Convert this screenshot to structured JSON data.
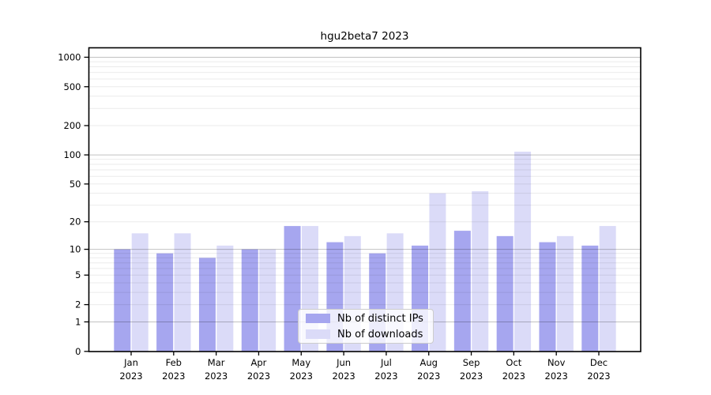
{
  "chart_data": {
    "type": "bar",
    "title": "hgu2beta7 2023",
    "categories": [
      "Jan 2023",
      "Feb 2023",
      "Mar 2023",
      "Apr 2023",
      "May 2023",
      "Jun 2023",
      "Jul 2023",
      "Aug 2023",
      "Sep 2023",
      "Oct 2023",
      "Nov 2023",
      "Dec 2023"
    ],
    "series": [
      {
        "name": "Nb of distinct IPs",
        "color": "#a6a6ef",
        "values": [
          10,
          9,
          8,
          10,
          18,
          12,
          9,
          11,
          16,
          14,
          12,
          11
        ]
      },
      {
        "name": "Nb of downloads",
        "color": "#dbdbf8",
        "values": [
          15,
          15,
          11,
          10,
          18,
          14,
          15,
          40,
          42,
          108,
          14,
          18
        ]
      }
    ],
    "y_axis": {
      "scale": "log10(1+x)",
      "tick_labels": [
        "0",
        "1",
        "2",
        "5",
        "10",
        "20",
        "50",
        "100",
        "200",
        "500",
        "1000"
      ],
      "ticks": [
        0,
        1,
        2,
        5,
        10,
        20,
        50,
        100,
        200,
        500,
        1000
      ],
      "minor_gridlines": [
        3,
        4,
        6,
        7,
        8,
        9,
        30,
        40,
        60,
        70,
        80,
        90,
        300,
        400,
        600,
        700,
        800,
        900
      ],
      "ylim": [
        0,
        1300
      ]
    },
    "grid": "on",
    "legend_position": "bottom-center",
    "frame_color": "#000000",
    "background": "#ffffff"
  }
}
